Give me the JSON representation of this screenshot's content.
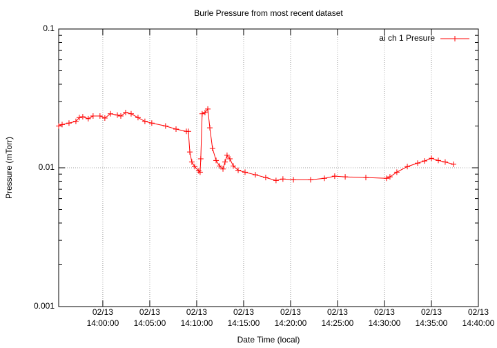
{
  "chart_data": {
    "type": "line",
    "title": "Burle Pressure from most recent dataset",
    "xlabel": "Date Time (local)",
    "ylabel": "Pressure (mTorr)",
    "log_y": true,
    "grid": true,
    "legend": "upper right",
    "xlim": [
      "13:55:18",
      "14:40:00"
    ],
    "xticks": [
      {
        "value": "14:00:00",
        "label": "02/13\n14:00:00"
      },
      {
        "value": "14:05:00",
        "label": "02/13\n14:05:00"
      },
      {
        "value": "14:10:00",
        "label": "02/13\n14:10:00"
      },
      {
        "value": "14:15:00",
        "label": "02/13\n14:15:00"
      },
      {
        "value": "14:20:00",
        "label": "02/13\n14:20:00"
      },
      {
        "value": "14:25:00",
        "label": "02/13\n14:25:00"
      },
      {
        "value": "14:30:00",
        "label": "02/13\n14:30:00"
      },
      {
        "value": "14:35:00",
        "label": "02/13\n14:35:00"
      },
      {
        "value": "14:40:00",
        "label": "02/13\n14:40:00"
      }
    ],
    "ylim": [
      0.001,
      0.1
    ],
    "yticks": [
      0.001,
      0.01,
      0.1
    ],
    "x": [
      "13:55:18",
      "13:55:40",
      "13:56:24",
      "13:57:08",
      "13:57:30",
      "13:57:52",
      "13:58:27",
      "13:58:58",
      "13:59:42",
      "14:00:13",
      "14:00:49",
      "14:01:33",
      "14:01:55",
      "14:02:26",
      "14:03:01",
      "14:03:45",
      "14:04:29",
      "14:05:13",
      "14:06:41",
      "14:07:48",
      "14:08:54",
      "14:09:07",
      "14:09:16",
      "14:09:29",
      "14:09:47",
      "14:10:13",
      "14:10:22",
      "14:10:26",
      "14:10:35",
      "14:10:53",
      "14:11:11",
      "14:11:24",
      "14:11:41",
      "14:12:04",
      "14:12:26",
      "14:12:48",
      "14:13:01",
      "14:13:14",
      "14:13:32",
      "14:13:54",
      "14:14:25",
      "14:15:09",
      "14:16:15",
      "14:17:21",
      "14:18:27",
      "14:19:11",
      "14:20:18",
      "14:22:08",
      "14:23:36",
      "14:24:42",
      "14:25:49",
      "14:28:01",
      "14:30:13",
      "14:30:35",
      "14:31:19",
      "14:32:26",
      "14:33:32",
      "14:34:16",
      "14:35:00",
      "14:35:44",
      "14:36:28",
      "14:37:21"
    ],
    "series": [
      {
        "name": "ai ch 1 Presure",
        "color": "#ff0000",
        "values": [
          0.02,
          0.0205,
          0.021,
          0.0216,
          0.023,
          0.0233,
          0.0226,
          0.0236,
          0.0236,
          0.0228,
          0.0245,
          0.024,
          0.0236,
          0.025,
          0.0245,
          0.023,
          0.0216,
          0.021,
          0.02,
          0.019,
          0.0183,
          0.0183,
          0.013,
          0.011,
          0.0102,
          0.0095,
          0.0093,
          0.0116,
          0.0245,
          0.025,
          0.0265,
          0.0194,
          0.0138,
          0.0113,
          0.0103,
          0.0098,
          0.011,
          0.0123,
          0.0116,
          0.0103,
          0.0096,
          0.0093,
          0.0089,
          0.0085,
          0.0081,
          0.0083,
          0.0082,
          0.0082,
          0.0084,
          0.0087,
          0.0086,
          0.0085,
          0.0084,
          0.0086,
          0.0093,
          0.0102,
          0.0108,
          0.0112,
          0.0117,
          0.0113,
          0.011,
          0.0106
        ]
      }
    ]
  }
}
